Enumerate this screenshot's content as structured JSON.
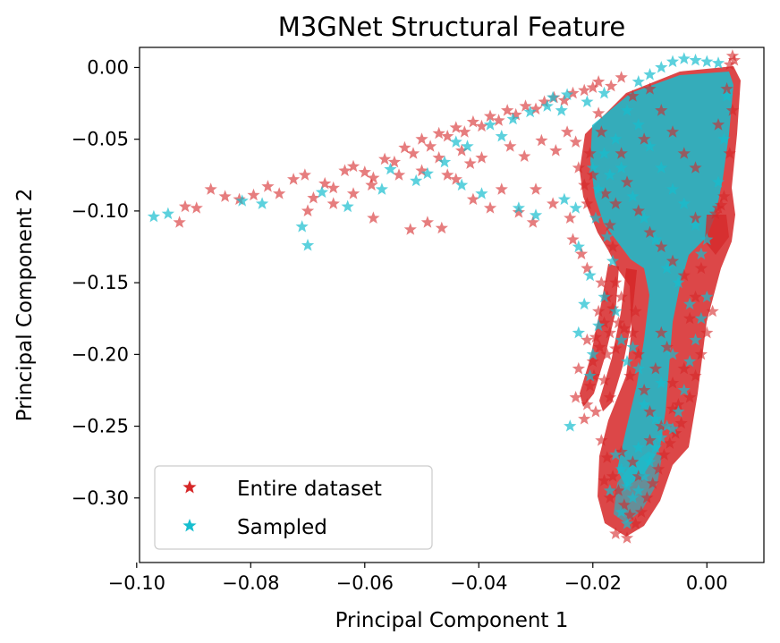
{
  "chart_data": {
    "type": "scatter",
    "title": "M3GNet Structural Feature",
    "xlabel": "Principal Component 1",
    "ylabel": "Principal Component 2",
    "xlim": [
      -0.0995,
      0.01
    ],
    "ylim": [
      -0.345,
      0.014
    ],
    "xticks": [
      -0.1,
      -0.08,
      -0.06,
      -0.04,
      -0.02,
      0.0
    ],
    "xtick_labels": [
      "−0.10",
      "−0.08",
      "−0.06",
      "−0.04",
      "−0.02",
      "0.00"
    ],
    "yticks": [
      0.0,
      -0.05,
      -0.1,
      -0.15,
      -0.2,
      -0.25,
      -0.3
    ],
    "ytick_labels": [
      "0.00",
      "−0.05",
      "−0.10",
      "−0.15",
      "−0.20",
      "−0.25",
      "−0.30"
    ],
    "grid": false,
    "legend_position": "lower-left",
    "marker": "star",
    "series": [
      {
        "name": "Entire dataset",
        "color": "#d62728",
        "points": [
          [
            -0.0915,
            -0.097
          ],
          [
            -0.0895,
            -0.098
          ],
          [
            -0.0925,
            -0.108
          ],
          [
            -0.087,
            -0.085
          ],
          [
            -0.0845,
            -0.09
          ],
          [
            -0.082,
            -0.092
          ],
          [
            -0.0795,
            -0.089
          ],
          [
            -0.077,
            -0.083
          ],
          [
            -0.075,
            -0.088
          ],
          [
            -0.0725,
            -0.078
          ],
          [
            -0.0705,
            -0.075
          ],
          [
            -0.069,
            -0.091
          ],
          [
            -0.067,
            -0.081
          ],
          [
            -0.0655,
            -0.084
          ],
          [
            -0.0635,
            -0.072
          ],
          [
            -0.062,
            -0.069
          ],
          [
            -0.06,
            -0.073
          ],
          [
            -0.0585,
            -0.077
          ],
          [
            -0.0565,
            -0.064
          ],
          [
            -0.0548,
            -0.066
          ],
          [
            -0.053,
            -0.056
          ],
          [
            -0.0515,
            -0.06
          ],
          [
            -0.05,
            -0.05
          ],
          [
            -0.0485,
            -0.055
          ],
          [
            -0.047,
            -0.046
          ],
          [
            -0.0455,
            -0.048
          ],
          [
            -0.044,
            -0.042
          ],
          [
            -0.0425,
            -0.045
          ],
          [
            -0.041,
            -0.038
          ],
          [
            -0.0395,
            -0.041
          ],
          [
            -0.038,
            -0.034
          ],
          [
            -0.0365,
            -0.037
          ],
          [
            -0.035,
            -0.03
          ],
          [
            -0.0335,
            -0.033
          ],
          [
            -0.0318,
            -0.027
          ],
          [
            -0.03,
            -0.029
          ],
          [
            -0.0285,
            -0.024
          ],
          [
            -0.0268,
            -0.021
          ],
          [
            -0.025,
            -0.023
          ],
          [
            -0.0235,
            -0.018
          ],
          [
            -0.0215,
            -0.016
          ],
          [
            -0.02,
            -0.014
          ],
          [
            -0.019,
            -0.01
          ],
          [
            -0.0168,
            -0.013
          ],
          [
            -0.015,
            -0.007
          ],
          [
            -0.0655,
            -0.095
          ],
          [
            -0.062,
            -0.088
          ],
          [
            -0.07,
            -0.1
          ],
          [
            -0.0588,
            -0.082
          ],
          [
            -0.054,
            -0.075
          ],
          [
            -0.0585,
            -0.105
          ],
          [
            -0.052,
            -0.113
          ],
          [
            -0.049,
            -0.108
          ],
          [
            -0.0465,
            -0.112
          ],
          [
            -0.044,
            -0.078
          ],
          [
            -0.041,
            -0.092
          ],
          [
            -0.038,
            -0.098
          ],
          [
            -0.033,
            -0.101
          ],
          [
            -0.03,
            -0.085
          ],
          [
            -0.027,
            -0.095
          ],
          [
            -0.024,
            -0.105
          ],
          [
            -0.0305,
            -0.108
          ],
          [
            -0.036,
            -0.085
          ],
          [
            -0.047,
            -0.063
          ],
          [
            -0.05,
            -0.072
          ],
          [
            -0.0415,
            -0.067
          ],
          [
            -0.0455,
            -0.075
          ],
          [
            -0.043,
            -0.058
          ],
          [
            -0.0395,
            -0.063
          ],
          [
            -0.0345,
            -0.055
          ],
          [
            -0.032,
            -0.062
          ],
          [
            -0.029,
            -0.051
          ],
          [
            -0.0265,
            -0.058
          ],
          [
            -0.0245,
            -0.045
          ],
          [
            -0.023,
            -0.052
          ],
          [
            -0.0225,
            -0.07
          ],
          [
            -0.0215,
            -0.082
          ],
          [
            -0.021,
            -0.095
          ],
          [
            -0.0205,
            -0.06
          ],
          [
            -0.02,
            -0.075
          ],
          [
            -0.019,
            -0.032
          ],
          [
            -0.0185,
            -0.045
          ],
          [
            -0.0178,
            -0.088
          ],
          [
            -0.017,
            -0.11
          ],
          [
            -0.0165,
            -0.125
          ],
          [
            -0.0185,
            -0.15
          ],
          [
            -0.019,
            -0.17
          ],
          [
            -0.0195,
            -0.188
          ],
          [
            -0.02,
            -0.205
          ],
          [
            -0.0205,
            -0.222
          ],
          [
            -0.021,
            -0.235
          ],
          [
            -0.0188,
            -0.195
          ],
          [
            -0.0198,
            -0.215
          ],
          [
            -0.0175,
            -0.16
          ],
          [
            -0.018,
            -0.178
          ],
          [
            -0.016,
            -0.15
          ],
          [
            -0.0165,
            -0.168
          ],
          [
            -0.017,
            -0.185
          ],
          [
            -0.0175,
            -0.2
          ],
          [
            -0.018,
            -0.218
          ],
          [
            -0.015,
            -0.16
          ],
          [
            -0.0155,
            -0.178
          ],
          [
            -0.016,
            -0.196
          ],
          [
            -0.0145,
            -0.182
          ],
          [
            -0.017,
            -0.23
          ],
          [
            -0.0125,
            -0.17
          ],
          [
            -0.013,
            -0.185
          ],
          [
            -0.012,
            -0.2
          ],
          [
            -0.0135,
            -0.215
          ],
          [
            -0.011,
            -0.225
          ],
          [
            -0.01,
            -0.24
          ],
          [
            -0.009,
            -0.21
          ],
          [
            -0.008,
            -0.185
          ],
          [
            -0.007,
            -0.195
          ],
          [
            -0.006,
            -0.22
          ],
          [
            -0.005,
            -0.235
          ],
          [
            -0.004,
            -0.21
          ],
          [
            -0.003,
            -0.175
          ],
          [
            -0.002,
            -0.16
          ],
          [
            -0.001,
            -0.14
          ],
          [
            -0.0185,
            -0.26
          ],
          [
            -0.0175,
            -0.272
          ],
          [
            -0.0165,
            -0.285
          ],
          [
            -0.0155,
            -0.295
          ],
          [
            -0.0145,
            -0.305
          ],
          [
            -0.0135,
            -0.312
          ],
          [
            -0.0125,
            -0.318
          ],
          [
            -0.0115,
            -0.31
          ],
          [
            -0.0105,
            -0.3
          ],
          [
            -0.0095,
            -0.29
          ],
          [
            -0.0085,
            -0.28
          ],
          [
            -0.0075,
            -0.27
          ],
          [
            -0.0065,
            -0.262
          ],
          [
            -0.0055,
            -0.255
          ],
          [
            -0.0045,
            -0.248
          ],
          [
            -0.016,
            -0.325
          ],
          [
            -0.014,
            -0.328
          ],
          [
            -0.017,
            -0.3
          ],
          [
            -0.018,
            -0.288
          ],
          [
            -0.015,
            -0.268
          ],
          [
            -0.01,
            -0.26
          ],
          [
            -0.008,
            -0.25
          ],
          [
            -0.012,
            -0.285
          ],
          [
            -0.013,
            -0.275
          ],
          [
            -0.006,
            -0.238
          ],
          [
            -0.003,
            -0.23
          ],
          [
            -0.002,
            -0.215
          ],
          [
            -0.001,
            -0.2
          ],
          [
            0.0,
            -0.185
          ],
          [
            0.001,
            -0.17
          ],
          [
            -0.0235,
            -0.12
          ],
          [
            -0.022,
            -0.13
          ],
          [
            -0.021,
            -0.14
          ],
          [
            -0.002,
            -0.105
          ],
          [
            0.0015,
            -0.102
          ],
          [
            0.002,
            -0.098
          ],
          [
            0.0025,
            -0.096
          ],
          [
            0.003,
            -0.09
          ],
          [
            0.004,
            -0.06
          ],
          [
            0.0045,
            -0.03
          ],
          [
            0.0048,
            0.005
          ],
          [
            0.0045,
            0.008
          ],
          [
            0.004,
            0.002
          ],
          [
            0.0035,
            -0.015
          ],
          [
            0.002,
            -0.04
          ],
          [
            -0.013,
            -0.02
          ],
          [
            -0.01,
            -0.015
          ],
          [
            -0.008,
            -0.03
          ],
          [
            -0.006,
            -0.045
          ],
          [
            -0.004,
            -0.06
          ],
          [
            -0.002,
            -0.07
          ],
          [
            -0.014,
            -0.08
          ],
          [
            -0.012,
            -0.1
          ],
          [
            -0.01,
            -0.115
          ],
          [
            -0.008,
            -0.125
          ],
          [
            -0.006,
            -0.135
          ],
          [
            -0.004,
            -0.145
          ],
          [
            -0.016,
            -0.095
          ],
          [
            -0.015,
            -0.06
          ],
          [
            -0.011,
            -0.05
          ],
          [
            -0.023,
            -0.23
          ],
          [
            -0.0215,
            -0.245
          ],
          [
            -0.0195,
            -0.24
          ],
          [
            -0.0225,
            -0.21
          ],
          [
            -0.021,
            -0.19
          ]
        ]
      },
      {
        "name": "Sampled",
        "color": "#17becf",
        "points": [
          [
            -0.097,
            -0.104
          ],
          [
            -0.0945,
            -0.102
          ],
          [
            -0.0815,
            -0.093
          ],
          [
            -0.078,
            -0.095
          ],
          [
            -0.07,
            -0.124
          ],
          [
            -0.071,
            -0.111
          ],
          [
            -0.0675,
            -0.087
          ],
          [
            -0.063,
            -0.097
          ],
          [
            -0.057,
            -0.085
          ],
          [
            -0.0555,
            -0.071
          ],
          [
            -0.051,
            -0.079
          ],
          [
            -0.049,
            -0.074
          ],
          [
            -0.046,
            -0.066
          ],
          [
            -0.044,
            -0.052
          ],
          [
            -0.042,
            -0.055
          ],
          [
            -0.038,
            -0.04
          ],
          [
            -0.036,
            -0.048
          ],
          [
            -0.034,
            -0.036
          ],
          [
            -0.031,
            -0.031
          ],
          [
            -0.028,
            -0.027
          ],
          [
            -0.027,
            -0.021
          ],
          [
            -0.0255,
            -0.03
          ],
          [
            -0.0245,
            -0.019
          ],
          [
            -0.021,
            -0.024
          ],
          [
            -0.018,
            -0.018
          ],
          [
            -0.043,
            -0.082
          ],
          [
            -0.0395,
            -0.088
          ],
          [
            -0.033,
            -0.098
          ],
          [
            -0.03,
            -0.103
          ],
          [
            -0.025,
            -0.092
          ],
          [
            -0.023,
            -0.098
          ],
          [
            -0.012,
            -0.01
          ],
          [
            -0.01,
            -0.005
          ],
          [
            -0.008,
            0.0
          ],
          [
            -0.006,
            0.004
          ],
          [
            -0.004,
            0.006
          ],
          [
            -0.002,
            0.005
          ],
          [
            0.0,
            0.004
          ],
          [
            0.002,
            0.003
          ],
          [
            -0.014,
            -0.03
          ],
          [
            -0.012,
            -0.04
          ],
          [
            -0.01,
            -0.055
          ],
          [
            -0.008,
            -0.07
          ],
          [
            -0.006,
            -0.085
          ],
          [
            -0.004,
            -0.095
          ],
          [
            -0.002,
            -0.11
          ],
          [
            0.0,
            -0.12
          ],
          [
            0.002,
            -0.08
          ],
          [
            0.003,
            -0.05
          ],
          [
            0.0035,
            -0.02
          ],
          [
            -0.015,
            -0.07
          ],
          [
            -0.013,
            -0.09
          ],
          [
            -0.011,
            -0.105
          ],
          [
            -0.009,
            -0.12
          ],
          [
            -0.007,
            -0.14
          ],
          [
            -0.005,
            -0.15
          ],
          [
            -0.003,
            -0.165
          ],
          [
            -0.016,
            -0.05
          ],
          [
            -0.017,
            -0.075
          ],
          [
            -0.018,
            -0.06
          ],
          [
            -0.019,
            -0.085
          ],
          [
            -0.02,
            -0.07
          ],
          [
            -0.0195,
            -0.105
          ],
          [
            -0.0175,
            -0.118
          ],
          [
            -0.0165,
            -0.135
          ],
          [
            -0.018,
            -0.16
          ],
          [
            -0.019,
            -0.18
          ],
          [
            -0.02,
            -0.2
          ],
          [
            -0.0205,
            -0.215
          ],
          [
            -0.016,
            -0.17
          ],
          [
            -0.015,
            -0.19
          ],
          [
            -0.014,
            -0.205
          ],
          [
            -0.013,
            -0.195
          ],
          [
            -0.012,
            -0.21
          ],
          [
            -0.011,
            -0.235
          ],
          [
            -0.009,
            -0.245
          ],
          [
            -0.007,
            -0.25
          ],
          [
            -0.005,
            -0.24
          ],
          [
            -0.004,
            -0.225
          ],
          [
            -0.003,
            -0.205
          ],
          [
            -0.002,
            -0.19
          ],
          [
            -0.001,
            -0.175
          ],
          [
            0.0,
            -0.16
          ],
          [
            -0.008,
            -0.22
          ],
          [
            -0.006,
            -0.2
          ],
          [
            -0.016,
            -0.27
          ],
          [
            -0.015,
            -0.28
          ],
          [
            -0.014,
            -0.292
          ],
          [
            -0.013,
            -0.3
          ],
          [
            -0.012,
            -0.295
          ],
          [
            -0.011,
            -0.285
          ],
          [
            -0.01,
            -0.275
          ],
          [
            -0.009,
            -0.265
          ],
          [
            -0.017,
            -0.295
          ],
          [
            -0.015,
            -0.31
          ],
          [
            -0.014,
            -0.318
          ],
          [
            -0.012,
            -0.265
          ],
          [
            -0.008,
            -0.258
          ],
          [
            -0.006,
            -0.252
          ],
          [
            -0.024,
            -0.25
          ],
          [
            -0.0225,
            -0.185
          ],
          [
            -0.0215,
            -0.165
          ],
          [
            -0.0205,
            -0.145
          ],
          [
            -0.0225,
            -0.125
          ],
          [
            -0.001,
            -0.13
          ]
        ]
      }
    ]
  }
}
